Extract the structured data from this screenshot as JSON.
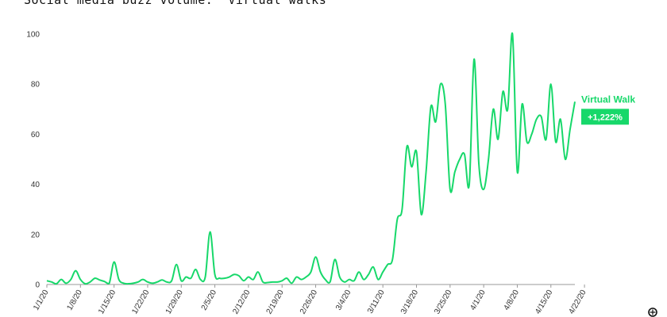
{
  "page": {
    "title": "Social media buzz volume: “Virtual walks”"
  },
  "colors": {
    "series": "#17d86a",
    "axis": "#999999",
    "text": "#333333"
  },
  "footer_icon": "logo-icon",
  "chart_data": {
    "type": "line",
    "title": "Social media buzz volume: “Virtual walks”",
    "xlabel": "",
    "ylabel": "",
    "ylim": [
      0,
      100
    ],
    "yticks": [
      0,
      20,
      40,
      60,
      80,
      100
    ],
    "x_tick_labels": [
      "1/1/20",
      "1/8/20",
      "1/15/20",
      "1/22/20",
      "1/29/20",
      "2/5/20",
      "2/12/20",
      "2/19/20",
      "2/26/20",
      "3/4/20",
      "3/11/20",
      "3/18/20",
      "3/25/20",
      "4/1/20",
      "4/8/20",
      "4/15/20",
      "4/22/20"
    ],
    "grid": false,
    "x_start": "2020-01-01",
    "series": [
      {
        "name": "Virtual Walk",
        "change_label": "+1,222%",
        "color": "#17d86a",
        "values": [
          1.5,
          1,
          0.3,
          2,
          0.5,
          2,
          5.5,
          2,
          0.3,
          1,
          2.5,
          1.8,
          1.2,
          0.5,
          9,
          2,
          0.5,
          0.3,
          0.5,
          1,
          2,
          1,
          0.5,
          1,
          1.8,
          1,
          1.5,
          8,
          1.5,
          3,
          2.5,
          6,
          2,
          3,
          21,
          4,
          2.5,
          2.5,
          3,
          4,
          3.5,
          1.5,
          3,
          2,
          5,
          1,
          0.8,
          1,
          1,
          1.5,
          2.5,
          0.5,
          3,
          2,
          3,
          5,
          11,
          5,
          2,
          1,
          10,
          3,
          1,
          2,
          1.5,
          5,
          2,
          4,
          7,
          2,
          5,
          8,
          10,
          26,
          30,
          55,
          47,
          53,
          28,
          45,
          71,
          65,
          80,
          72,
          38,
          45,
          50,
          52,
          40,
          90,
          48,
          38,
          50,
          70,
          58,
          77,
          70,
          100,
          45,
          72,
          57,
          60,
          66,
          67,
          58,
          80,
          57,
          66,
          50,
          62,
          73
        ]
      }
    ]
  }
}
